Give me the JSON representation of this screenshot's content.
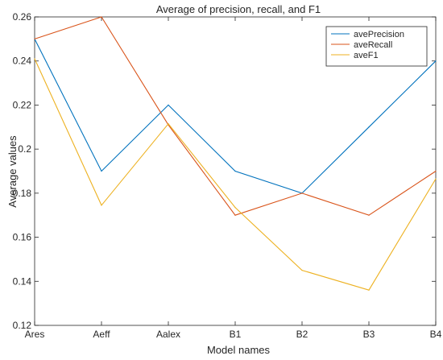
{
  "chart_data": {
    "type": "line",
    "title": "Average of precision, recall, and F1",
    "xlabel": "Model names",
    "ylabel": "Average values",
    "categories": [
      "Ares",
      "Aeff",
      "Aalex",
      "B1",
      "B2",
      "B3",
      "B4"
    ],
    "ylim": [
      0.12,
      0.26
    ],
    "yticks": [
      "0.12",
      "0.14",
      "0.16",
      "0.18",
      "0.2",
      "0.22",
      "0.24",
      "0.26"
    ],
    "grid": false,
    "legend_position": "top-right",
    "series": [
      {
        "name": "avePrecision",
        "color": "#0072bd",
        "values": [
          0.25,
          0.19,
          0.22,
          0.19,
          0.18,
          0.21,
          0.24
        ]
      },
      {
        "name": "aveRecall",
        "color": "#d95319",
        "values": [
          0.25,
          0.26,
          0.211,
          0.17,
          0.18,
          0.17,
          0.19
        ]
      },
      {
        "name": "aveF1",
        "color": "#edb120",
        "values": [
          0.241,
          0.1745,
          0.2115,
          0.1735,
          0.145,
          0.136,
          0.1865
        ]
      }
    ]
  }
}
